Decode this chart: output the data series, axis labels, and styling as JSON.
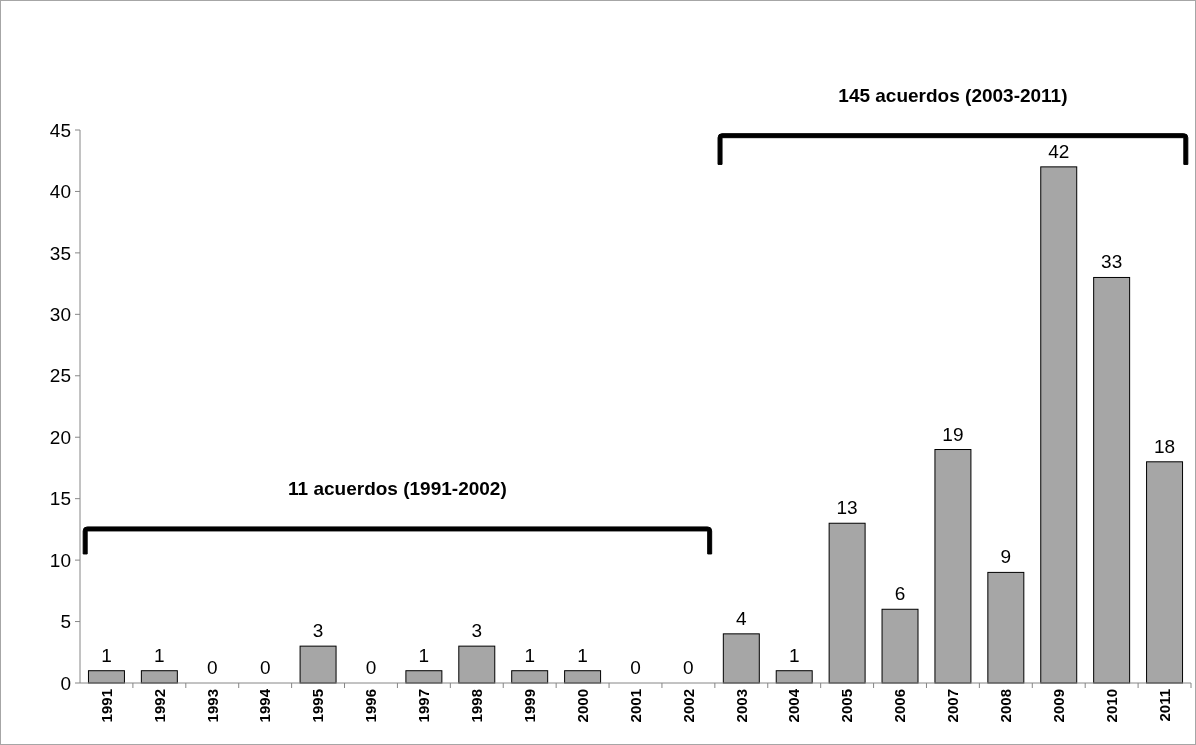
{
  "chart_data": {
    "type": "bar",
    "categories": [
      "1991",
      "1992",
      "1993",
      "1994",
      "1995",
      "1996",
      "1997",
      "1998",
      "1999",
      "2000",
      "2001",
      "2002",
      "2003",
      "2004",
      "2005",
      "2006",
      "2007",
      "2008",
      "2009",
      "2010",
      "2011"
    ],
    "values": [
      1,
      1,
      0,
      0,
      3,
      0,
      1,
      3,
      1,
      1,
      0,
      0,
      4,
      1,
      13,
      6,
      19,
      9,
      42,
      33,
      18
    ],
    "color": "#a6a6a6",
    "ylim": [
      0,
      45
    ],
    "yticks": [
      0,
      5,
      10,
      15,
      20,
      25,
      30,
      35,
      40,
      45
    ],
    "grid": false,
    "data_labels": true,
    "annotations": [
      "11 acuerdos (1991-2002)",
      "145 acuerdos (2003-2011)"
    ]
  }
}
